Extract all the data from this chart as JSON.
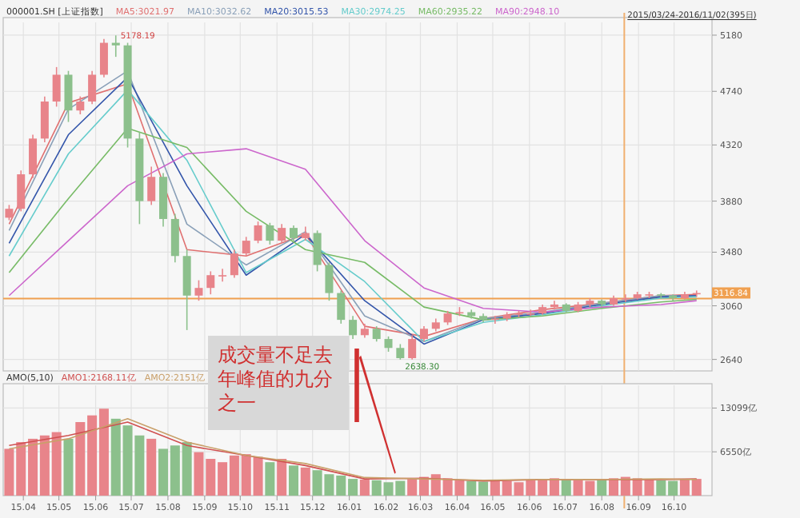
{
  "chart_data": [
    {
      "type": "candlestick",
      "title": "000001.SH [上证指数]",
      "grid": true,
      "legend": "top",
      "marker": "none",
      "tick_labels": "y",
      "x": [
        "2015-03-20",
        "2015-03-30",
        "2015-04-09",
        "2015-04-19",
        "2015-04-29",
        "2015-05-09",
        "2015-05-19",
        "2015-05-29",
        "2015-06-08",
        "2015-06-18",
        "2015-06-28",
        "2015-07-08",
        "2015-07-18",
        "2015-07-28",
        "2015-08-07",
        "2015-08-17",
        "2015-08-27",
        "2015-09-06",
        "2015-09-16",
        "2015-09-26",
        "2015-10-06",
        "2015-10-16",
        "2015-10-26",
        "2015-11-05",
        "2015-11-15",
        "2015-11-25",
        "2015-12-05",
        "2015-12-15",
        "2015-12-25",
        "2016-01-04",
        "2016-01-14",
        "2016-01-24",
        "2016-02-03",
        "2016-02-13",
        "2016-02-23",
        "2016-03-04",
        "2016-03-14",
        "2016-03-24",
        "2016-04-03",
        "2016-04-13",
        "2016-04-23",
        "2016-05-03",
        "2016-05-13",
        "2016-05-23",
        "2016-06-02",
        "2016-06-12",
        "2016-06-22",
        "2016-07-02",
        "2016-07-12",
        "2016-07-22",
        "2016-08-01",
        "2016-08-11",
        "2016-08-21",
        "2016-08-31",
        "2016-09-10",
        "2016-09-20",
        "2016-09-30",
        "2016-10-10",
        "2016-10-20"
      ],
      "ohlc": [
        [
          3750,
          3850,
          3730,
          3820
        ],
        [
          3820,
          4120,
          3800,
          4090
        ],
        [
          4090,
          4400,
          4060,
          4370
        ],
        [
          4370,
          4700,
          4340,
          4660
        ],
        [
          4660,
          4930,
          4620,
          4870
        ],
        [
          4870,
          4900,
          4500,
          4590
        ],
        [
          4590,
          4700,
          4560,
          4660
        ],
        [
          4660,
          4900,
          4640,
          4870
        ],
        [
          4870,
          5150,
          4850,
          5120
        ],
        [
          5120,
          5178.19,
          5010,
          5100
        ],
        [
          5100,
          5120,
          4300,
          4370
        ],
        [
          4370,
          4420,
          3700,
          3880
        ],
        [
          3880,
          4150,
          3850,
          4070
        ],
        [
          4070,
          4100,
          3680,
          3740
        ],
        [
          3740,
          3780,
          3400,
          3450
        ],
        [
          3450,
          3500,
          2870,
          3140
        ],
        [
          3140,
          3260,
          3100,
          3200
        ],
        [
          3200,
          3330,
          3150,
          3300
        ],
        [
          3300,
          3350,
          3250,
          3300
        ],
        [
          3300,
          3500,
          3280,
          3470
        ],
        [
          3470,
          3600,
          3450,
          3570
        ],
        [
          3570,
          3720,
          3550,
          3690
        ],
        [
          3690,
          3710,
          3540,
          3570
        ],
        [
          3570,
          3700,
          3550,
          3670
        ],
        [
          3670,
          3690,
          3560,
          3590
        ],
        [
          3590,
          3680,
          3570,
          3630
        ],
        [
          3630,
          3650,
          3330,
          3380
        ],
        [
          3380,
          3400,
          3100,
          3160
        ],
        [
          3160,
          3180,
          2920,
          2950
        ],
        [
          2950,
          2980,
          2800,
          2830
        ],
        [
          2830,
          2920,
          2810,
          2880
        ],
        [
          2880,
          2900,
          2780,
          2800
        ],
        [
          2800,
          2820,
          2700,
          2730
        ],
        [
          2730,
          2760,
          2638.3,
          2650
        ],
        [
          2650,
          2830,
          2640,
          2800
        ],
        [
          2800,
          2900,
          2780,
          2880
        ],
        [
          2880,
          2960,
          2860,
          2930
        ],
        [
          2930,
          3020,
          2910,
          3000
        ],
        [
          3000,
          3050,
          2980,
          3010
        ],
        [
          3010,
          3030,
          2960,
          2980
        ],
        [
          2980,
          3000,
          2930,
          2950
        ],
        [
          2950,
          2980,
          2920,
          2960
        ],
        [
          2960,
          3010,
          2940,
          2990
        ],
        [
          2990,
          3020,
          2970,
          3000
        ],
        [
          3000,
          3030,
          2980,
          3000
        ],
        [
          3000,
          3070,
          2990,
          3050
        ],
        [
          3050,
          3100,
          3030,
          3070
        ],
        [
          3070,
          3080,
          3000,
          3020
        ],
        [
          3020,
          3090,
          3010,
          3070
        ],
        [
          3070,
          3120,
          3050,
          3100
        ],
        [
          3100,
          3110,
          3050,
          3070
        ],
        [
          3070,
          3140,
          3060,
          3120
        ],
        [
          3120,
          3150,
          3090,
          3120
        ],
        [
          3120,
          3170,
          3110,
          3150
        ],
        [
          3150,
          3170,
          3120,
          3150
        ],
        [
          3150,
          3160,
          3120,
          3140
        ],
        [
          3140,
          3150,
          3100,
          3120
        ],
        [
          3120,
          3170,
          3110,
          3150
        ],
        [
          3150,
          3180,
          3130,
          3160
        ]
      ],
      "colors": [
        "#e8848a",
        "#e8848a",
        "#e8848a",
        "#e8848a",
        "#e8848a",
        "#8cc08c",
        "#e8848a",
        "#e8848a",
        "#e8848a",
        "#8cc08c",
        "#8cc08c",
        "#8cc08c",
        "#e8848a",
        "#8cc08c",
        "#8cc08c",
        "#8cc08c",
        "#e8848a",
        "#e8848a",
        "#e8848a",
        "#e8848a",
        "#e8848a",
        "#e8848a",
        "#8cc08c",
        "#e8848a",
        "#8cc08c",
        "#e8848a",
        "#8cc08c",
        "#8cc08c",
        "#8cc08c",
        "#8cc08c",
        "#e8848a",
        "#8cc08c",
        "#8cc08c",
        "#8cc08c",
        "#e8848a",
        "#e8848a",
        "#e8848a",
        "#e8848a",
        "#e8848a",
        "#8cc08c",
        "#8cc08c",
        "#e8848a",
        "#e8848a",
        "#e8848a",
        "#e8848a",
        "#e8848a",
        "#e8848a",
        "#8cc08c",
        "#e8848a",
        "#e8848a",
        "#8cc08c",
        "#e8848a",
        "#e8848a",
        "#e8848a",
        "#e8848a",
        "#8cc08c",
        "#8cc08c",
        "#e8848a",
        "#e8848a"
      ],
      "series": [
        {
          "name": "MA5:3021.97",
          "type": "line",
          "color": "#e07070",
          "x": [
            "2015-03-20",
            "2015-05-09",
            "2015-06-28",
            "2015-08-17",
            "2015-10-06",
            "2015-11-25",
            "2016-01-14",
            "2016-03-04",
            "2016-04-23",
            "2016-06-12",
            "2016-08-01",
            "2016-09-20",
            "2016-10-20"
          ],
          "values": [
            3700,
            4650,
            4800,
            3500,
            3450,
            3620,
            2900,
            2820,
            2960,
            3030,
            3080,
            3140,
            3150
          ]
        },
        {
          "name": "MA10:3032.62",
          "type": "line",
          "color": "#8aa0b8",
          "x": [
            "2015-03-20",
            "2015-05-09",
            "2015-06-28",
            "2015-08-17",
            "2015-10-06",
            "2015-11-25",
            "2016-01-14",
            "2016-03-04",
            "2016-04-23",
            "2016-06-12",
            "2016-08-01",
            "2016-09-20",
            "2016-10-20"
          ],
          "values": [
            3650,
            4600,
            4900,
            3700,
            3380,
            3640,
            2980,
            2780,
            2960,
            3010,
            3080,
            3140,
            3140
          ]
        },
        {
          "name": "MA20:3015.53",
          "type": "line",
          "color": "#3355aa",
          "x": [
            "2015-03-20",
            "2015-05-09",
            "2015-06-28",
            "2015-08-17",
            "2015-10-06",
            "2015-11-25",
            "2016-01-14",
            "2016-03-04",
            "2016-04-23",
            "2016-06-12",
            "2016-08-01",
            "2016-09-20",
            "2016-10-20"
          ],
          "values": [
            3550,
            4400,
            4850,
            4000,
            3300,
            3620,
            3100,
            2760,
            2950,
            3000,
            3070,
            3130,
            3140
          ]
        },
        {
          "name": "MA30:2974.25",
          "type": "line",
          "color": "#66cccc",
          "x": [
            "2015-03-20",
            "2015-05-09",
            "2015-06-28",
            "2015-08-17",
            "2015-10-06",
            "2015-11-25",
            "2016-01-14",
            "2016-03-04",
            "2016-04-23",
            "2016-06-12",
            "2016-08-01",
            "2016-09-20",
            "2016-10-20"
          ],
          "values": [
            3450,
            4250,
            4750,
            4200,
            3320,
            3580,
            3250,
            2780,
            2930,
            2990,
            3060,
            3120,
            3130
          ]
        },
        {
          "name": "MA60:2935.22",
          "type": "line",
          "color": "#77bb66",
          "x": [
            "2015-03-20",
            "2015-05-09",
            "2015-06-28",
            "2015-08-17",
            "2015-10-06",
            "2015-11-25",
            "2016-01-14",
            "2016-03-04",
            "2016-04-23",
            "2016-06-12",
            "2016-08-01",
            "2016-09-20",
            "2016-10-20"
          ],
          "values": [
            3320,
            3900,
            4450,
            4300,
            3800,
            3500,
            3400,
            3050,
            2950,
            2980,
            3040,
            3090,
            3110
          ]
        },
        {
          "name": "MA90:2948.10",
          "type": "line",
          "color": "#cc66cc",
          "x": [
            "2015-03-20",
            "2015-05-09",
            "2015-06-28",
            "2015-08-17",
            "2015-10-06",
            "2015-11-25",
            "2016-01-14",
            "2016-03-04",
            "2016-04-23",
            "2016-06-12",
            "2016-08-01",
            "2016-09-20",
            "2016-10-20"
          ],
          "values": [
            3140,
            3570,
            4000,
            4250,
            4290,
            4130,
            3570,
            3200,
            3040,
            3010,
            3050,
            3070,
            3100
          ]
        }
      ],
      "xlim": [
        "2015-03-15",
        "2016-11-02"
      ],
      "xticks": [
        "2015-04-01",
        "2015-05-01",
        "2015-06-01",
        "2015-07-01",
        "2015-08-01",
        "2015-09-01",
        "2015-10-01",
        "2015-11-01",
        "2015-12-01",
        "2016-01-01",
        "2016-02-01",
        "2016-03-01",
        "2016-04-01",
        "2016-05-01",
        "2016-06-01",
        "2016-07-01",
        "2016-08-01",
        "2016-09-01",
        "2016-10-01"
      ],
      "ylim": [
        2550,
        5280
      ],
      "yticks": [
        2640,
        3060,
        3480,
        3880,
        4320,
        4740,
        5180
      ],
      "ref_lines": [
        {
          "axis": "y",
          "value": 3116.84,
          "label": "3116.84",
          "color": "#f0a050"
        },
        {
          "axis": "x",
          "value": "2016-08-20",
          "color": "#f0b070"
        }
      ],
      "annotations": [
        {
          "text": "5178.19",
          "x": "2015-06-18",
          "y": 5178.19
        },
        {
          "text": "2638.30",
          "x": "2016-02-13",
          "y": 2638.3
        },
        "2015/03/24-2016/11/02(395日)"
      ]
    },
    {
      "type": "bar",
      "legend_title": "AMO(5,10)",
      "grid": true,
      "legend": "top",
      "marker": "none",
      "x": [
        "2015-03-20",
        "2015-03-30",
        "2015-04-09",
        "2015-04-19",
        "2015-04-29",
        "2015-05-09",
        "2015-05-19",
        "2015-05-29",
        "2015-06-08",
        "2015-06-18",
        "2015-06-28",
        "2015-07-08",
        "2015-07-18",
        "2015-07-28",
        "2015-08-07",
        "2015-08-17",
        "2015-08-27",
        "2015-09-06",
        "2015-09-16",
        "2015-09-26",
        "2015-10-06",
        "2015-10-16",
        "2015-10-26",
        "2015-11-05",
        "2015-11-15",
        "2015-11-25",
        "2015-12-05",
        "2015-12-15",
        "2015-12-25",
        "2016-01-04",
        "2016-01-14",
        "2016-01-24",
        "2016-02-03",
        "2016-02-13",
        "2016-02-23",
        "2016-03-04",
        "2016-03-14",
        "2016-03-24",
        "2016-04-03",
        "2016-04-13",
        "2016-04-23",
        "2016-05-03",
        "2016-05-13",
        "2016-05-23",
        "2016-06-02",
        "2016-06-12",
        "2016-06-22",
        "2016-07-02",
        "2016-07-12",
        "2016-07-22",
        "2016-08-01",
        "2016-08-11",
        "2016-08-21",
        "2016-08-31",
        "2016-09-10",
        "2016-09-20",
        "2016-09-30",
        "2016-10-10",
        "2016-10-20"
      ],
      "values": [
        7000,
        8000,
        8500,
        9000,
        9500,
        8500,
        11000,
        12000,
        13000,
        11500,
        10500,
        9000,
        8500,
        7000,
        7500,
        8000,
        6500,
        5500,
        5000,
        6000,
        6200,
        5800,
        5000,
        5500,
        4500,
        4200,
        3800,
        3200,
        3000,
        2500,
        2400,
        2300,
        2000,
        2200,
        2500,
        2800,
        3200,
        2600,
        2400,
        2200,
        2100,
        2300,
        2200,
        2000,
        2300,
        2500,
        2600,
        2400,
        2300,
        2200,
        2400,
        2600,
        2800,
        2600,
        2500,
        2300,
        2200,
        2400,
        2500
      ],
      "colors": [
        "#e8848a",
        "#e8848a",
        "#e8848a",
        "#e8848a",
        "#e8848a",
        "#8cc08c",
        "#e8848a",
        "#e8848a",
        "#e8848a",
        "#8cc08c",
        "#8cc08c",
        "#8cc08c",
        "#e8848a",
        "#8cc08c",
        "#8cc08c",
        "#8cc08c",
        "#e8848a",
        "#e8848a",
        "#e8848a",
        "#e8848a",
        "#e8848a",
        "#e8848a",
        "#8cc08c",
        "#e8848a",
        "#8cc08c",
        "#e8848a",
        "#8cc08c",
        "#8cc08c",
        "#8cc08c",
        "#8cc08c",
        "#e8848a",
        "#8cc08c",
        "#8cc08c",
        "#8cc08c",
        "#e8848a",
        "#e8848a",
        "#e8848a",
        "#e8848a",
        "#e8848a",
        "#8cc08c",
        "#8cc08c",
        "#e8848a",
        "#e8848a",
        "#e8848a",
        "#e8848a",
        "#e8848a",
        "#e8848a",
        "#8cc08c",
        "#e8848a",
        "#e8848a",
        "#8cc08c",
        "#e8848a",
        "#e8848a",
        "#e8848a",
        "#e8848a",
        "#8cc08c",
        "#8cc08c",
        "#e8848a",
        "#e8848a"
      ],
      "series": [
        {
          "name": "AMO1:2168.11亿",
          "type": "line",
          "color": "#d05050",
          "x": [
            "2015-03-20",
            "2015-05-09",
            "2015-06-28",
            "2015-08-17",
            "2015-10-06",
            "2015-11-25",
            "2016-01-14",
            "2016-03-04",
            "2016-04-23",
            "2016-06-12",
            "2016-08-01",
            "2016-09-20",
            "2016-10-20"
          ],
          "values": [
            7500,
            9000,
            11000,
            7500,
            6000,
            4500,
            2500,
            2600,
            2200,
            2400,
            2400,
            2400,
            2500
          ]
        },
        {
          "name": "AMO2:2151亿",
          "type": "line",
          "color": "#c9a06a",
          "x": [
            "2015-03-20",
            "2015-05-09",
            "2015-06-28",
            "2015-08-17",
            "2015-10-06",
            "2015-11-25",
            "2016-01-14",
            "2016-03-04",
            "2016-04-23",
            "2016-06-12",
            "2016-08-01",
            "2016-09-20",
            "2016-10-20"
          ],
          "values": [
            7000,
            8500,
            11500,
            8000,
            6000,
            4800,
            2700,
            2500,
            2300,
            2400,
            2400,
            2500,
            2400
          ]
        }
      ],
      "xlim": [
        "2015-03-15",
        "2016-11-02"
      ],
      "xticks": [
        {
          "value": "2015-04-01",
          "label": "15.04"
        },
        {
          "value": "2015-05-01",
          "label": "15.05"
        },
        {
          "value": "2015-06-01",
          "label": "15.06"
        },
        {
          "value": "2015-07-01",
          "label": "15.07"
        },
        {
          "value": "2015-08-01",
          "label": "15.08"
        },
        {
          "value": "2015-09-01",
          "label": "15.09"
        },
        {
          "value": "2015-10-01",
          "label": "15.10"
        },
        {
          "value": "2015-11-01",
          "label": "15.11"
        },
        {
          "value": "2015-12-01",
          "label": "15.12"
        },
        {
          "value": "2016-01-01",
          "label": "16.01"
        },
        {
          "value": "2016-02-01",
          "label": "16.02"
        },
        {
          "value": "2016-03-01",
          "label": "16.03"
        },
        {
          "value": "2016-04-01",
          "label": "16.04"
        },
        {
          "value": "2016-05-01",
          "label": "16.05"
        },
        {
          "value": "2016-06-01",
          "label": "16.06"
        },
        {
          "value": "2016-07-01",
          "label": "16.07"
        },
        {
          "value": "2016-08-01",
          "label": "16.08"
        },
        {
          "value": "2016-09-01",
          "label": "16.09"
        },
        {
          "value": "2016-10-01",
          "label": "16.10"
        }
      ],
      "ylim": [
        0,
        16500
      ],
      "yticks": [
        {
          "value": 6550,
          "label": "6550亿"
        },
        {
          "value": 13099,
          "label": "13099亿"
        }
      ],
      "annotations": [
        "成交量不足去年峰值的九分之一"
      ]
    }
  ]
}
